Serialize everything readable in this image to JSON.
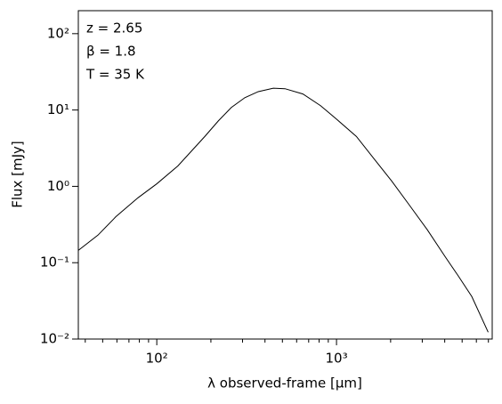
{
  "chart_data": {
    "type": "line",
    "xlabel": "λ observed-frame [μm]",
    "ylabel": "Flux [mJy]",
    "annotations": [
      "z = 2.65",
      "β = 1.8",
      "T = 35 K"
    ],
    "xscale": "log",
    "yscale": "log",
    "xlim": [
      36.6,
      7350
    ],
    "ylim": [
      0.01,
      200
    ],
    "xticks": [
      {
        "value": 100,
        "label": "10²"
      },
      {
        "value": 1000,
        "label": "10³"
      }
    ],
    "xminor_ticks": [
      40,
      50,
      60,
      70,
      80,
      90,
      200,
      300,
      400,
      500,
      600,
      700,
      800,
      900,
      2000,
      3000,
      4000,
      5000,
      6000,
      7000
    ],
    "yticks": [
      {
        "value": 0.01,
        "label": "10⁻²"
      },
      {
        "value": 0.1,
        "label": "10⁻¹"
      },
      {
        "value": 1,
        "label": "10⁰"
      },
      {
        "value": 10,
        "label": "10¹"
      },
      {
        "value": 100,
        "label": "10²"
      }
    ],
    "x": [
      36.6,
      47.1,
      59.2,
      78.7,
      100,
      131,
      185,
      220,
      260,
      309,
      367,
      445,
      517,
      650,
      815,
      1000,
      1290,
      1617,
      2030,
      2541,
      3200,
      4020,
      4760,
      5660,
      6980
    ],
    "series": [
      {
        "color": "#000000",
        "values": [
          0.145,
          0.23,
          0.4,
          0.71,
          1.08,
          1.85,
          4.5,
          7.2,
          10.8,
          14.5,
          17.4,
          19.3,
          19.0,
          16.2,
          11.4,
          7.6,
          4.5,
          2.3,
          1.17,
          0.57,
          0.27,
          0.12,
          0.067,
          0.036,
          0.0123
        ]
      }
    ]
  }
}
